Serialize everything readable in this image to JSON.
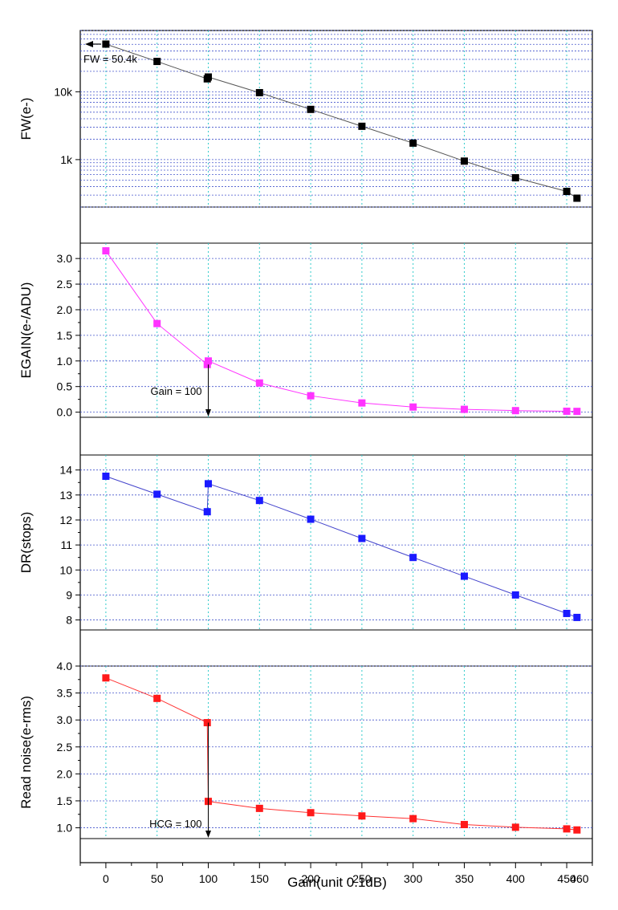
{
  "chart_data": [
    {
      "type": "line",
      "ylabel": "FW(e-)",
      "yscale": "log",
      "ylim": [
        200,
        80000
      ],
      "y_ticks": [
        1000,
        10000
      ],
      "y_tick_labels": [
        "1k",
        "10k"
      ],
      "color": "#000000",
      "line_color": "#555555",
      "x": [
        0,
        50,
        99,
        100,
        150,
        200,
        250,
        300,
        350,
        400,
        450,
        460
      ],
      "values": [
        50400,
        28000,
        15500,
        16500,
        9700,
        5500,
        3100,
        1750,
        950,
        540,
        340,
        270
      ],
      "annotation": "FW = 50.4k",
      "grid": true
    },
    {
      "type": "line",
      "ylabel": "EGAIN(e-/ADU)",
      "ylim": [
        -0.1,
        3.3
      ],
      "y_ticks": [
        0.0,
        0.5,
        1.0,
        1.5,
        2.0,
        2.5,
        3.0
      ],
      "y_tick_labels": [
        "0.0",
        "0.5",
        "1.0",
        "1.5",
        "2.0",
        "2.5",
        "3.0"
      ],
      "color": "#ff33ff",
      "line_color": "#ff33ff",
      "x": [
        0,
        50,
        99,
        100,
        150,
        200,
        250,
        300,
        350,
        400,
        450,
        460
      ],
      "values": [
        3.15,
        1.73,
        0.93,
        1.0,
        0.57,
        0.32,
        0.18,
        0.1,
        0.055,
        0.03,
        0.018,
        0.015
      ],
      "annotation": "Gain = 100",
      "grid": true
    },
    {
      "type": "line",
      "ylabel": "DR(stops)",
      "ylim": [
        7.6,
        14.6
      ],
      "y_ticks": [
        8,
        9,
        10,
        11,
        12,
        13,
        14
      ],
      "y_tick_labels": [
        "8",
        "9",
        "10",
        "11",
        "12",
        "13",
        "14"
      ],
      "color": "#1a1aff",
      "line_color": "#4444cc",
      "x": [
        0,
        50,
        99,
        100,
        150,
        200,
        250,
        300,
        350,
        400,
        450,
        460
      ],
      "values": [
        13.75,
        13.03,
        12.33,
        13.45,
        12.78,
        12.03,
        11.26,
        10.5,
        9.75,
        9.0,
        8.26,
        8.1
      ],
      "grid": true
    },
    {
      "type": "line",
      "ylabel": "Read noise(e-rms)",
      "ylim": [
        0.8,
        4.0
      ],
      "y_ticks": [
        1.0,
        1.5,
        2.0,
        2.5,
        3.0,
        3.5,
        4.0
      ],
      "y_tick_labels": [
        "1.0",
        "1.5",
        "2.0",
        "2.5",
        "3.0",
        "3.5",
        "4.0"
      ],
      "color": "#ff1a1a",
      "line_color": "#ff3333",
      "x": [
        0,
        50,
        99,
        100,
        150,
        200,
        250,
        300,
        350,
        400,
        450,
        460
      ],
      "values": [
        3.78,
        3.4,
        2.95,
        1.49,
        1.36,
        1.28,
        1.22,
        1.17,
        1.06,
        1.01,
        0.98,
        0.96
      ],
      "annotation": "HCG = 100",
      "grid": true
    }
  ],
  "x_axis": {
    "label": "Gain(unit 0.1dB)",
    "xlim": [
      -25,
      475
    ],
    "ticks": [
      0,
      50,
      100,
      150,
      200,
      250,
      300,
      350,
      400,
      450
    ],
    "tick_labels": [
      "0",
      "50",
      "100",
      "150",
      "200",
      "250",
      "300",
      "350",
      "400",
      "450"
    ],
    "extra_label": "460"
  }
}
